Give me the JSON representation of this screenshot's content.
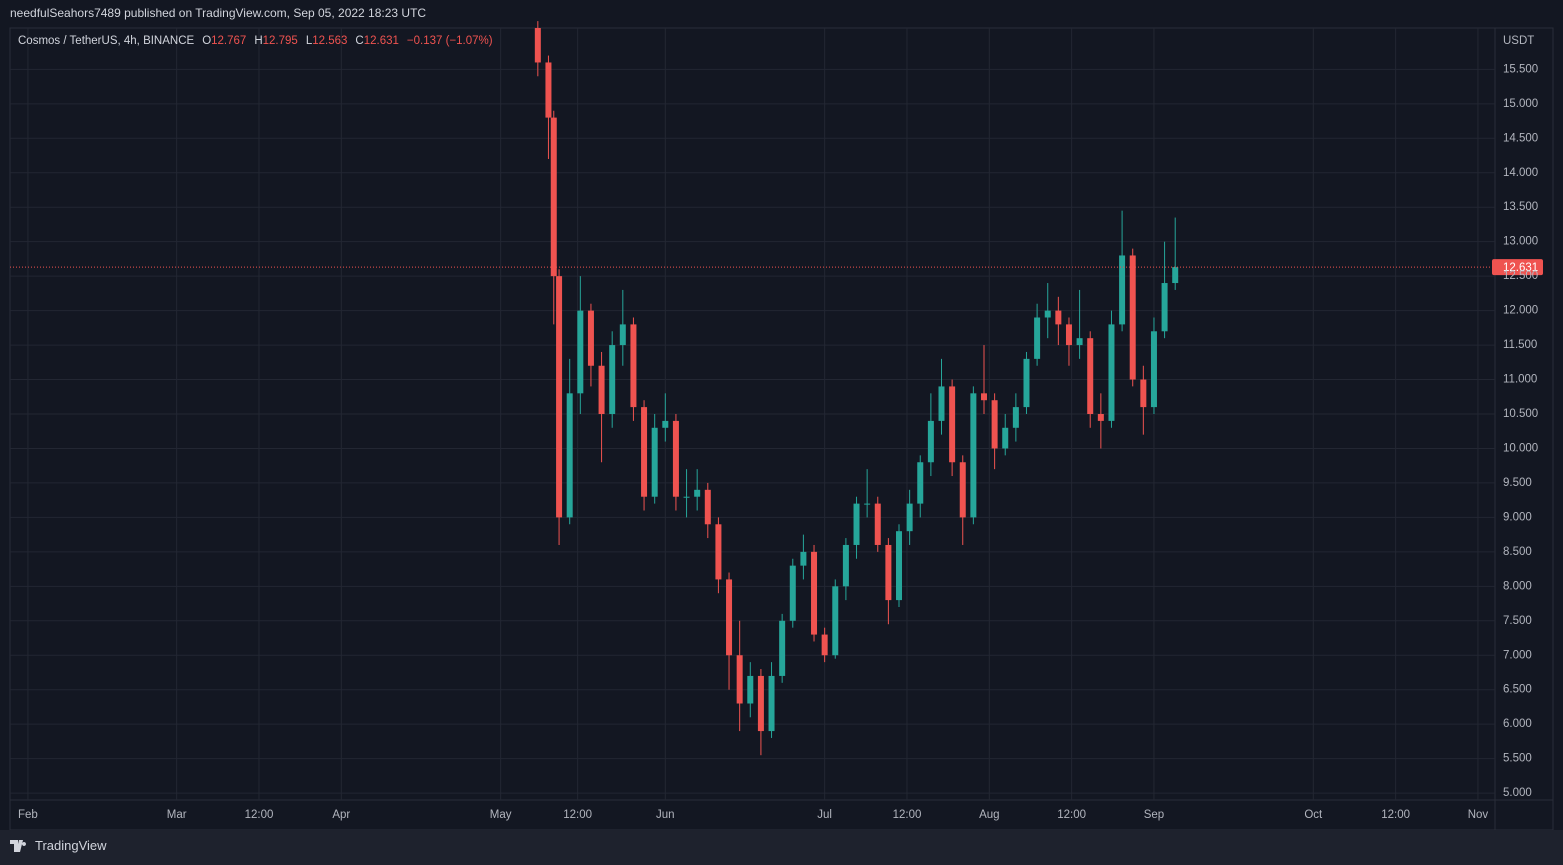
{
  "header": {
    "publisher": "needfulSeahors7489 published on TradingView.com, Sep 05, 2022 18:23 UTC"
  },
  "footer": {
    "brand": "TradingView"
  },
  "legend": {
    "symbol": "Cosmos / TetherUS, 4h, BINANCE",
    "open_label": "O",
    "open": 12.767,
    "high_label": "H",
    "high": 12.795,
    "low_label": "L",
    "low": 12.563,
    "close_label": "C",
    "close": 12.631,
    "change": "−0.137 (−1.07%)"
  },
  "chart_data": {
    "type": "candlestick",
    "y_unit": "USDT",
    "up_color": "#26a69a",
    "down_color": "#ef5350",
    "grid": true,
    "x": [
      "2022-05-08",
      "2022-05-10",
      "2022-05-11",
      "2022-05-12",
      "2022-05-14",
      "2022-05-16",
      "2022-05-18",
      "2022-05-20",
      "2022-05-22",
      "2022-05-24",
      "2022-05-26",
      "2022-05-28",
      "2022-05-30",
      "2022-06-01",
      "2022-06-03",
      "2022-06-05",
      "2022-06-07",
      "2022-06-09",
      "2022-06-11",
      "2022-06-13",
      "2022-06-15",
      "2022-06-17",
      "2022-06-19",
      "2022-06-21",
      "2022-06-23",
      "2022-06-25",
      "2022-06-27",
      "2022-06-29",
      "2022-07-01",
      "2022-07-03",
      "2022-07-05",
      "2022-07-07",
      "2022-07-09",
      "2022-07-11",
      "2022-07-13",
      "2022-07-15",
      "2022-07-17",
      "2022-07-19",
      "2022-07-21",
      "2022-07-23",
      "2022-07-25",
      "2022-07-27",
      "2022-07-29",
      "2022-07-31",
      "2022-08-02",
      "2022-08-04",
      "2022-08-06",
      "2022-08-08",
      "2022-08-10",
      "2022-08-12",
      "2022-08-14",
      "2022-08-16",
      "2022-08-18",
      "2022-08-20",
      "2022-08-22",
      "2022-08-24",
      "2022-08-26",
      "2022-08-28",
      "2022-08-30",
      "2022-09-01",
      "2022-09-03",
      "2022-09-05"
    ],
    "open": [
      16.1,
      15.6,
      14.8,
      12.5,
      9.0,
      10.8,
      12.0,
      11.2,
      10.5,
      11.5,
      11.8,
      10.6,
      9.3,
      10.3,
      10.4,
      9.3,
      9.3,
      9.4,
      8.9,
      8.1,
      7.0,
      6.3,
      6.7,
      5.9,
      6.7,
      7.5,
      8.3,
      8.5,
      7.3,
      7.0,
      8.0,
      8.6,
      9.2,
      9.2,
      8.6,
      7.8,
      8.8,
      9.2,
      9.8,
      10.4,
      10.9,
      9.8,
      9.0,
      10.8,
      10.7,
      10.0,
      10.3,
      10.6,
      11.3,
      11.9,
      12.0,
      11.8,
      11.5,
      11.6,
      10.5,
      10.4,
      11.8,
      12.8,
      11.0,
      10.6,
      11.7,
      12.4
    ],
    "high": [
      16.2,
      15.7,
      14.9,
      12.6,
      11.3,
      12.5,
      12.1,
      11.4,
      11.7,
      12.3,
      11.9,
      10.7,
      10.5,
      10.8,
      10.5,
      9.7,
      9.7,
      9.5,
      9.0,
      8.2,
      7.5,
      6.9,
      6.8,
      6.9,
      7.6,
      8.4,
      8.75,
      8.6,
      7.4,
      8.1,
      8.7,
      9.3,
      9.7,
      9.3,
      8.7,
      8.9,
      9.4,
      9.9,
      10.8,
      11.3,
      11.0,
      9.9,
      10.9,
      11.5,
      10.8,
      10.5,
      10.8,
      11.4,
      12.1,
      12.4,
      12.2,
      11.9,
      12.3,
      11.7,
      10.8,
      12.0,
      13.45,
      12.9,
      11.2,
      11.9,
      13.0,
      13.35
    ],
    "low": [
      15.4,
      14.2,
      11.8,
      8.6,
      8.9,
      10.5,
      10.9,
      9.8,
      10.3,
      11.2,
      10.4,
      9.1,
      9.2,
      10.1,
      9.1,
      9.0,
      9.1,
      8.7,
      7.9,
      6.5,
      5.9,
      6.1,
      5.55,
      5.8,
      6.6,
      7.4,
      8.1,
      7.2,
      6.9,
      6.95,
      7.8,
      8.4,
      9.0,
      8.5,
      7.45,
      7.7,
      8.6,
      9.0,
      9.6,
      10.2,
      9.6,
      8.6,
      8.9,
      10.5,
      9.7,
      9.9,
      10.1,
      10.5,
      11.2,
      11.6,
      11.5,
      11.2,
      11.3,
      10.3,
      10.0,
      10.3,
      11.7,
      10.9,
      10.2,
      10.5,
      11.6,
      12.3
    ],
    "close": [
      15.6,
      14.8,
      12.5,
      9.0,
      10.8,
      12.0,
      11.2,
      10.5,
      11.5,
      11.8,
      10.6,
      9.3,
      10.3,
      10.4,
      9.3,
      9.3,
      9.4,
      8.9,
      8.1,
      7.0,
      6.3,
      6.7,
      5.9,
      6.7,
      7.5,
      8.3,
      8.5,
      7.3,
      7.0,
      8.0,
      8.6,
      9.2,
      9.2,
      8.6,
      7.8,
      8.8,
      9.2,
      9.8,
      10.4,
      10.9,
      9.8,
      9.0,
      10.8,
      10.7,
      10.0,
      10.3,
      10.6,
      11.3,
      11.9,
      12.0,
      11.8,
      11.5,
      11.6,
      10.5,
      10.4,
      11.8,
      12.8,
      11.0,
      10.6,
      11.7,
      12.4,
      12.631
    ],
    "xlim": [
      "2022-01-28T15:00",
      "2022-11-04T05:00"
    ],
    "xticks": [
      {
        "value": "2022-02-01",
        "label": "Feb"
      },
      {
        "value": "2022-03-01",
        "label": "Mar"
      },
      {
        "value": "2022-03-16T12:00",
        "label": "12:00"
      },
      {
        "value": "2022-04-01",
        "label": "Apr"
      },
      {
        "value": "2022-05-01",
        "label": "May"
      },
      {
        "value": "2022-05-15T12:00",
        "label": "12:00"
      },
      {
        "value": "2022-06-01",
        "label": "Jun"
      },
      {
        "value": "2022-07-01",
        "label": "Jul"
      },
      {
        "value": "2022-07-16T12:00",
        "label": "12:00"
      },
      {
        "value": "2022-08-01",
        "label": "Aug"
      },
      {
        "value": "2022-08-16T12:00",
        "label": "12:00"
      },
      {
        "value": "2022-09-01",
        "label": "Sep"
      },
      {
        "value": "2022-10-01",
        "label": "Oct"
      },
      {
        "value": "2022-10-16T12:00",
        "label": "12:00"
      },
      {
        "value": "2022-11-01",
        "label": "Nov"
      }
    ],
    "ylim": [
      4.9,
      16.1
    ],
    "yticks": [
      {
        "value": 5,
        "label": "5.000"
      },
      {
        "value": 5.5,
        "label": "5.500"
      },
      {
        "value": 6,
        "label": "6.000"
      },
      {
        "value": 6.5,
        "label": "6.500"
      },
      {
        "value": 7,
        "label": "7.000"
      },
      {
        "value": 7.5,
        "label": "7.500"
      },
      {
        "value": 8,
        "label": "8.000"
      },
      {
        "value": 8.5,
        "label": "8.500"
      },
      {
        "value": 9,
        "label": "9.000"
      },
      {
        "value": 9.5,
        "label": "9.500"
      },
      {
        "value": 10,
        "label": "10.000"
      },
      {
        "value": 10.5,
        "label": "10.500"
      },
      {
        "value": 11,
        "label": "11.000"
      },
      {
        "value": 11.5,
        "label": "11.500"
      },
      {
        "value": 12,
        "label": "12.000"
      },
      {
        "value": 12.5,
        "label": "12.500"
      },
      {
        "value": 13,
        "label": "13.000"
      },
      {
        "value": 13.5,
        "label": "13.500"
      },
      {
        "value": 14,
        "label": "14.000"
      },
      {
        "value": 14.5,
        "label": "14.500"
      },
      {
        "value": 15,
        "label": "15.000"
      },
      {
        "value": 15.5,
        "label": "15.500"
      }
    ]
  }
}
